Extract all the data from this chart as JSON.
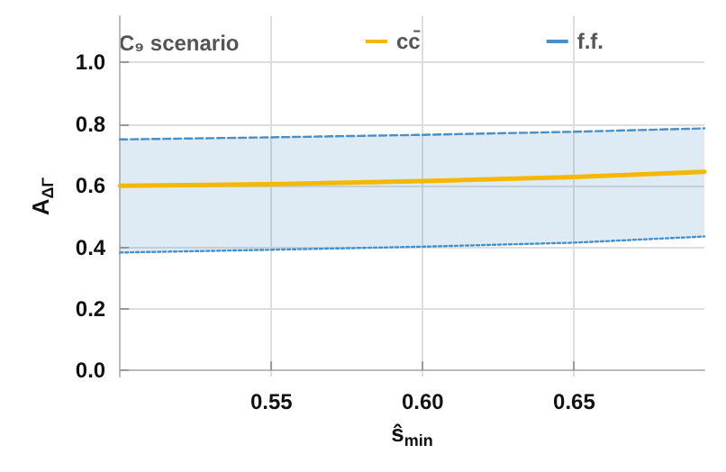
{
  "chart_data": {
    "type": "line",
    "xlabel": "ŝ$_{min}$",
    "ylabel": "A$_{ΔΓ}$",
    "annotations": [
      "C₉ scenario"
    ],
    "x": [
      0.5,
      0.55,
      0.6,
      0.65,
      0.693
    ],
    "series": [
      {
        "name": "cc̄",
        "color": "#f5b800",
        "values": [
          0.6,
          0.605,
          0.615,
          0.628,
          0.645
        ]
      },
      {
        "name": "f.f.",
        "color": "#4a8fc7",
        "line_style": "dashed",
        "values": [
          0.75,
          0.757,
          0.765,
          0.775,
          0.786
        ],
        "lower": [
          0.383,
          0.392,
          0.402,
          0.415,
          0.435
        ],
        "upper": [
          0.75,
          0.757,
          0.765,
          0.775,
          0.786
        ]
      },
      {
        "color": "#4a8fc7",
        "line_style": "dotted",
        "values": [
          0.383,
          0.392,
          0.402,
          0.415,
          0.435
        ]
      }
    ],
    "xlim": [
      0.5,
      0.693
    ],
    "xticks": [
      0.55,
      {
        "value": 0.6,
        "label": "0.60"
      },
      0.65
    ],
    "ylim": [
      -0.02,
      1.15
    ],
    "yticks": [
      {
        "value": 0,
        "label": "0.0"
      },
      0.2,
      0.4,
      0.6,
      0.8,
      {
        "value": 1,
        "label": "1.0"
      }
    ],
    "grid": true,
    "legend": "top",
    "marker": "none",
    "line_style": "solid"
  }
}
